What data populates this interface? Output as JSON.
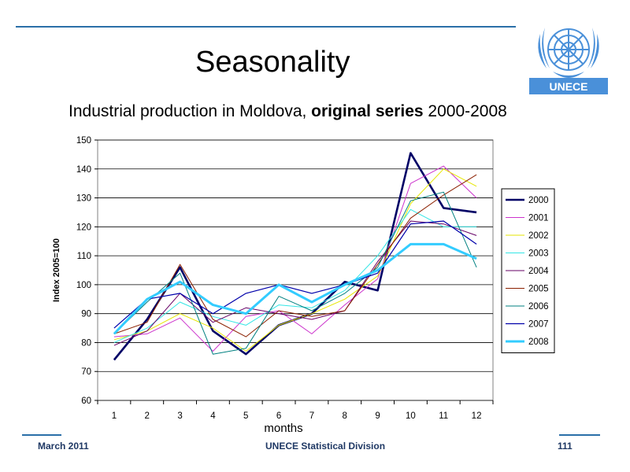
{
  "slide": {
    "title": "Seasonality",
    "subtitle_plain": "Industrial production in Moldova, ",
    "subtitle_bold": "original series",
    "subtitle_rest": " 2000-2008",
    "logo_text": "UNECE",
    "footer_left": "March 2011",
    "footer_center": "UNECE Statistical Division",
    "footer_right": "111"
  },
  "colors": {
    "rule": "#2a6fa8",
    "un_blue": "#4a90d9",
    "footer_text": "#1f3864"
  },
  "chart_data": {
    "type": "line",
    "title": "",
    "xlabel": "months",
    "ylabel": "Index 2005=100",
    "x": [
      1,
      2,
      3,
      4,
      5,
      6,
      7,
      8,
      9,
      10,
      11,
      12
    ],
    "ylim": [
      60,
      150
    ],
    "yticks": [
      60,
      70,
      80,
      90,
      100,
      110,
      120,
      130,
      140,
      150
    ],
    "grid": "horizontal",
    "legend_position": "right",
    "series": [
      {
        "name": "2000",
        "color": "#000066",
        "width": 2.6,
        "values": [
          74,
          88,
          106,
          84,
          76,
          86,
          90,
          101,
          98,
          145.5,
          126.5,
          125
        ]
      },
      {
        "name": "2001",
        "color": "#cc33cc",
        "width": 1,
        "values": [
          82,
          83,
          88.5,
          77,
          89,
          91,
          83,
          93,
          102,
          135,
          141,
          130
        ]
      },
      {
        "name": "2002",
        "color": "#e6e600",
        "width": 1,
        "values": [
          81,
          84,
          90,
          85,
          77,
          86,
          90,
          95,
          103,
          128,
          140,
          134
        ]
      },
      {
        "name": "2003",
        "color": "#33e6e6",
        "width": 1,
        "values": [
          80,
          85,
          94,
          89,
          86,
          93,
          92,
          98,
          110,
          126,
          120,
          120
        ]
      },
      {
        "name": "2004",
        "color": "#660066",
        "width": 1,
        "values": [
          79,
          84,
          97,
          87,
          92,
          90,
          88,
          91,
          108,
          122,
          121,
          117
        ]
      },
      {
        "name": "2005",
        "color": "#8b2000",
        "width": 1,
        "values": [
          83,
          87,
          107,
          88,
          82,
          91,
          89,
          91,
          107,
          123,
          131,
          138
        ]
      },
      {
        "name": "2006",
        "color": "#008080",
        "width": 1,
        "values": [
          83,
          94,
          104,
          76,
          78,
          96,
          91,
          97,
          106,
          129,
          132,
          106
        ]
      },
      {
        "name": "2007",
        "color": "#0000aa",
        "width": 1.2,
        "values": [
          85,
          95,
          97,
          90,
          97,
          100,
          97,
          100,
          104,
          121,
          122,
          114
        ]
      },
      {
        "name": "2008",
        "color": "#33ccff",
        "width": 3,
        "values": [
          83,
          95,
          101,
          93,
          90,
          100,
          94,
          100,
          105,
          114,
          114,
          109
        ]
      }
    ]
  }
}
